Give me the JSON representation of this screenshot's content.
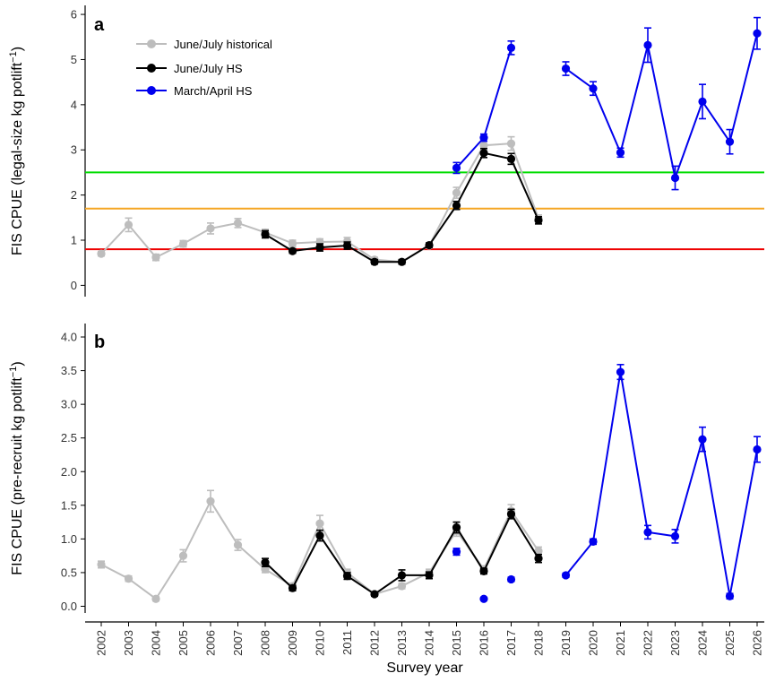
{
  "chart_data": {
    "type": "line",
    "colors": {
      "historical": "#bdbdbd",
      "hs_june": "#000000",
      "hs_march": "#0000ee",
      "green": "#00dd00",
      "orange": "#f5a623",
      "red": "#ee0000"
    },
    "xlabel": "Survey year",
    "x_tick_labels": [
      "2002",
      "2003",
      "2004",
      "2005",
      "2006",
      "2007",
      "2008",
      "2009",
      "2010",
      "2011",
      "2012",
      "2013",
      "2014",
      "2015",
      "2016",
      "2017",
      "2018",
      "2019",
      "2020",
      "2021",
      "2022",
      "2023",
      "2024",
      "2025",
      "2026"
    ],
    "legend": {
      "position": "top-left",
      "entries": [
        {
          "label": "June/July historical",
          "color": "#bdbdbd"
        },
        {
          "label": "June/July HS",
          "color": "#000000"
        },
        {
          "label": "March/April HS",
          "color": "#0000ee"
        }
      ]
    },
    "panels": [
      {
        "label": "a",
        "ylabel": "FIS CPUE (legal-size kg potlift",
        "ylabel_sup": "−1",
        "ylabel_close": ")",
        "ylim": [
          -0.25,
          6.2
        ],
        "yticks": [
          0,
          1,
          2,
          3,
          4,
          5,
          6
        ],
        "ytick_labels": [
          "0",
          "1",
          "2",
          "3",
          "4",
          "5",
          "6"
        ],
        "hlines": [
          {
            "y": 2.5,
            "color": "#00dd00"
          },
          {
            "y": 1.7,
            "color": "#f5a623"
          },
          {
            "y": 0.8,
            "color": "#ee0000"
          }
        ],
        "series": [
          {
            "name": "June/July historical",
            "color": "#bdbdbd",
            "line": true,
            "points": [
              {
                "x": 2002,
                "y": 0.7,
                "err": 0.05
              },
              {
                "x": 2003,
                "y": 1.34,
                "err": 0.15
              },
              {
                "x": 2004,
                "y": 0.62,
                "err": 0.07
              },
              {
                "x": 2005,
                "y": 0.92,
                "err": 0.07
              },
              {
                "x": 2006,
                "y": 1.26,
                "err": 0.12
              },
              {
                "x": 2007,
                "y": 1.38,
                "err": 0.1
              },
              {
                "x": 2008,
                "y": 1.17,
                "err": 0.07
              },
              {
                "x": 2009,
                "y": 0.93,
                "err": 0.07
              },
              {
                "x": 2010,
                "y": 0.96,
                "err": 0.07
              },
              {
                "x": 2011,
                "y": 0.97,
                "err": 0.09
              },
              {
                "x": 2012,
                "y": 0.57,
                "err": 0.05
              },
              {
                "x": 2013,
                "y": 0.52,
                "err": 0.05
              },
              {
                "x": 2014,
                "y": 0.88,
                "err": 0.05
              },
              {
                "x": 2015,
                "y": 2.05,
                "err": 0.12
              },
              {
                "x": 2016,
                "y": 3.1,
                "err": 0.1
              },
              {
                "x": 2017,
                "y": 3.14,
                "err": 0.15
              },
              {
                "x": 2018,
                "y": 1.48,
                "err": 0.08
              }
            ]
          },
          {
            "name": "June/July HS",
            "color": "#000000",
            "line": true,
            "points": [
              {
                "x": 2008,
                "y": 1.13,
                "err": 0.08
              },
              {
                "x": 2009,
                "y": 0.76,
                "err": 0.05
              },
              {
                "x": 2010,
                "y": 0.84,
                "err": 0.08
              },
              {
                "x": 2011,
                "y": 0.88,
                "err": 0.08
              },
              {
                "x": 2012,
                "y": 0.52,
                "err": 0.05
              },
              {
                "x": 2013,
                "y": 0.52,
                "err": 0.05
              },
              {
                "x": 2014,
                "y": 0.89,
                "err": 0.05
              },
              {
                "x": 2015,
                "y": 1.77,
                "err": 0.09
              },
              {
                "x": 2016,
                "y": 2.93,
                "err": 0.1
              },
              {
                "x": 2017,
                "y": 2.8,
                "err": 0.12
              },
              {
                "x": 2018,
                "y": 1.44,
                "err": 0.08
              }
            ]
          },
          {
            "name": "March/April HS",
            "color": "#0000ee",
            "line": true,
            "points": [
              {
                "x": 2015,
                "y": 2.6,
                "err": 0.12
              },
              {
                "x": 2016,
                "y": 3.27,
                "err": 0.08
              },
              {
                "x": 2017,
                "y": 5.26,
                "err": 0.15
              }
            ]
          },
          {
            "name": "March/April HS",
            "color": "#0000ee",
            "line": true,
            "points": [
              {
                "x": 2019,
                "y": 4.8,
                "err": 0.15
              },
              {
                "x": 2020,
                "y": 4.36,
                "err": 0.15
              },
              {
                "x": 2021,
                "y": 2.94,
                "err": 0.1
              },
              {
                "x": 2022,
                "y": 5.32,
                "err": 0.38
              },
              {
                "x": 2023,
                "y": 2.38,
                "err": 0.26
              },
              {
                "x": 2024,
                "y": 4.07,
                "err": 0.38
              },
              {
                "x": 2025,
                "y": 3.18,
                "err": 0.27
              },
              {
                "x": 2026,
                "y": 5.58,
                "err": 0.35
              }
            ]
          }
        ]
      },
      {
        "label": "b",
        "ylabel": "FIS CPUE (pre-recruit kg potlift",
        "ylabel_sup": "−1",
        "ylabel_close": ")",
        "ylim": [
          -0.1,
          4.2
        ],
        "yticks": [
          0,
          0.5,
          1,
          1.5,
          2,
          2.5,
          3,
          3.5,
          4
        ],
        "ytick_labels": [
          "0.0",
          "0.5",
          "1.0",
          "1.5",
          "2.0",
          "2.5",
          "3.0",
          "3.5",
          "4.0"
        ],
        "hlines": [],
        "series": [
          {
            "name": "June/July historical",
            "color": "#bdbdbd",
            "line": true,
            "points": [
              {
                "x": 2002,
                "y": 0.62,
                "err": 0.05
              },
              {
                "x": 2003,
                "y": 0.41,
                "err": 0.04
              },
              {
                "x": 2004,
                "y": 0.11,
                "err": 0.03
              },
              {
                "x": 2005,
                "y": 0.75,
                "err": 0.09
              },
              {
                "x": 2006,
                "y": 1.56,
                "err": 0.16
              },
              {
                "x": 2007,
                "y": 0.91,
                "err": 0.08
              },
              {
                "x": 2008,
                "y": 0.55,
                "err": 0.05
              },
              {
                "x": 2009,
                "y": 0.3,
                "err": 0.04
              },
              {
                "x": 2010,
                "y": 1.23,
                "err": 0.12
              },
              {
                "x": 2011,
                "y": 0.5,
                "err": 0.05
              },
              {
                "x": 2012,
                "y": 0.18,
                "err": 0.03
              },
              {
                "x": 2013,
                "y": 0.3,
                "err": 0.04
              },
              {
                "x": 2014,
                "y": 0.5,
                "err": 0.05
              },
              {
                "x": 2015,
                "y": 1.12,
                "err": 0.08
              },
              {
                "x": 2016,
                "y": 0.55,
                "err": 0.05
              },
              {
                "x": 2017,
                "y": 1.42,
                "err": 0.09
              },
              {
                "x": 2018,
                "y": 0.82,
                "err": 0.06
              }
            ]
          },
          {
            "name": "June/July HS",
            "color": "#000000",
            "line": true,
            "points": [
              {
                "x": 2008,
                "y": 0.65,
                "err": 0.06
              },
              {
                "x": 2009,
                "y": 0.27,
                "err": 0.04
              },
              {
                "x": 2010,
                "y": 1.05,
                "err": 0.08
              },
              {
                "x": 2011,
                "y": 0.45,
                "err": 0.05
              },
              {
                "x": 2012,
                "y": 0.18,
                "err": 0.03
              },
              {
                "x": 2013,
                "y": 0.46,
                "err": 0.08
              },
              {
                "x": 2014,
                "y": 0.46,
                "err": 0.05
              },
              {
                "x": 2015,
                "y": 1.17,
                "err": 0.08
              },
              {
                "x": 2016,
                "y": 0.52,
                "err": 0.04
              },
              {
                "x": 2017,
                "y": 1.37,
                "err": 0.07
              },
              {
                "x": 2018,
                "y": 0.71,
                "err": 0.06
              }
            ]
          },
          {
            "name": "March/April HS",
            "color": "#0000ee",
            "line": false,
            "points": [
              {
                "x": 2015,
                "y": 0.81,
                "err": 0.05
              },
              {
                "x": 2016,
                "y": 0.11,
                "err": 0.02
              },
              {
                "x": 2017,
                "y": 0.4,
                "err": 0.03
              }
            ]
          },
          {
            "name": "March/April HS",
            "color": "#0000ee",
            "line": true,
            "points": [
              {
                "x": 2019,
                "y": 0.46,
                "err": 0.03
              },
              {
                "x": 2020,
                "y": 0.96,
                "err": 0.04
              },
              {
                "x": 2021,
                "y": 3.48,
                "err": 0.11
              },
              {
                "x": 2022,
                "y": 1.1,
                "err": 0.1
              },
              {
                "x": 2023,
                "y": 1.04,
                "err": 0.1
              },
              {
                "x": 2024,
                "y": 2.48,
                "err": 0.18
              },
              {
                "x": 2025,
                "y": 0.15,
                "err": 0.04
              },
              {
                "x": 2026,
                "y": 2.33,
                "err": 0.19
              }
            ]
          }
        ]
      }
    ]
  }
}
